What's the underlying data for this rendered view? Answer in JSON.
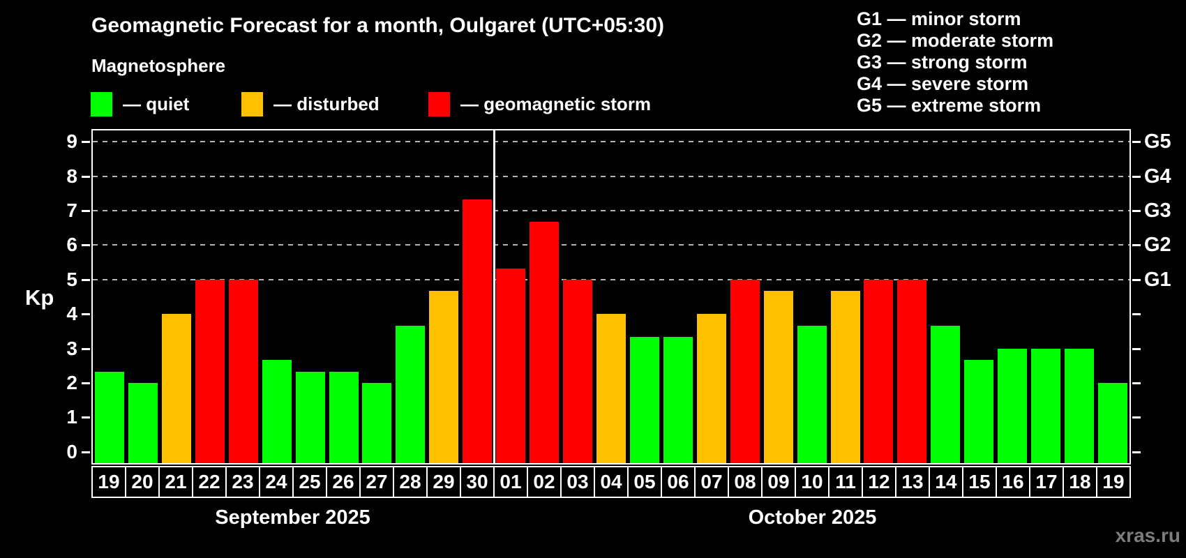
{
  "title": "Geomagnetic Forecast for a month, Oulgaret (UTC+05:30)",
  "subtitle": "Magnetosphere",
  "legend": {
    "items": [
      {
        "label": "— quiet",
        "level": "quiet"
      },
      {
        "label": "— disturbed",
        "level": "disturbed"
      },
      {
        "label": "— geomagnetic storm",
        "level": "storm"
      }
    ]
  },
  "storm_scale_legend": [
    "G1 — minor storm",
    "G2 — moderate storm",
    "G3 — strong storm",
    "G4 — severe storm",
    "G5 — extreme storm"
  ],
  "watermark": "xras.ru",
  "colors": {
    "background": "#000000",
    "text": "#ffffff",
    "axis": "#ffffff",
    "gridline": "#b5b5b5",
    "watermark": "#7d7d7d",
    "quiet": "#00ff00",
    "disturbed": "#ffc000",
    "storm": "#ff0000"
  },
  "chart_data": {
    "type": "bar",
    "title": "Geomagnetic Forecast for a month, Oulgaret (UTC+05:30)",
    "xlabel": "",
    "ylabel": "Kp",
    "ylim": [
      -0.33,
      9.33
    ],
    "yticks": [
      0,
      1,
      2,
      3,
      4,
      5,
      6,
      7,
      8,
      9
    ],
    "grid": "horizontal dashed lines at Kp 5-9 only",
    "legend_position": "top-left",
    "right_axis_labels": [
      {
        "value": 5,
        "label": "G1"
      },
      {
        "value": 6,
        "label": "G2"
      },
      {
        "value": 7,
        "label": "G3"
      },
      {
        "value": 8,
        "label": "G4"
      },
      {
        "value": 9,
        "label": "G5"
      }
    ],
    "months": [
      {
        "label": "September 2025",
        "days": [
          {
            "day": "19",
            "kp": 2.33,
            "level": "quiet"
          },
          {
            "day": "20",
            "kp": 2.0,
            "level": "quiet"
          },
          {
            "day": "21",
            "kp": 4.0,
            "level": "disturbed"
          },
          {
            "day": "22",
            "kp": 5.0,
            "level": "storm"
          },
          {
            "day": "23",
            "kp": 5.0,
            "level": "storm"
          },
          {
            "day": "24",
            "kp": 2.67,
            "level": "quiet"
          },
          {
            "day": "25",
            "kp": 2.33,
            "level": "quiet"
          },
          {
            "day": "26",
            "kp": 2.33,
            "level": "quiet"
          },
          {
            "day": "27",
            "kp": 2.0,
            "level": "quiet"
          },
          {
            "day": "28",
            "kp": 3.67,
            "level": "quiet"
          },
          {
            "day": "29",
            "kp": 4.67,
            "level": "disturbed"
          },
          {
            "day": "30",
            "kp": 7.33,
            "level": "storm"
          }
        ]
      },
      {
        "label": "October 2025",
        "days": [
          {
            "day": "01",
            "kp": 5.33,
            "level": "storm"
          },
          {
            "day": "02",
            "kp": 6.67,
            "level": "storm"
          },
          {
            "day": "03",
            "kp": 5.0,
            "level": "storm"
          },
          {
            "day": "04",
            "kp": 4.0,
            "level": "disturbed"
          },
          {
            "day": "05",
            "kp": 3.33,
            "level": "quiet"
          },
          {
            "day": "06",
            "kp": 3.33,
            "level": "quiet"
          },
          {
            "day": "07",
            "kp": 4.0,
            "level": "disturbed"
          },
          {
            "day": "08",
            "kp": 5.0,
            "level": "storm"
          },
          {
            "day": "09",
            "kp": 4.67,
            "level": "disturbed"
          },
          {
            "day": "10",
            "kp": 3.67,
            "level": "quiet"
          },
          {
            "day": "11",
            "kp": 4.67,
            "level": "disturbed"
          },
          {
            "day": "12",
            "kp": 5.0,
            "level": "storm"
          },
          {
            "day": "13",
            "kp": 5.0,
            "level": "storm"
          },
          {
            "day": "14",
            "kp": 3.67,
            "level": "quiet"
          },
          {
            "day": "15",
            "kp": 2.67,
            "level": "quiet"
          },
          {
            "day": "16",
            "kp": 3.0,
            "level": "quiet"
          },
          {
            "day": "17",
            "kp": 3.0,
            "level": "quiet"
          },
          {
            "day": "18",
            "kp": 3.0,
            "level": "quiet"
          },
          {
            "day": "19",
            "kp": 2.0,
            "level": "quiet"
          }
        ]
      }
    ]
  }
}
